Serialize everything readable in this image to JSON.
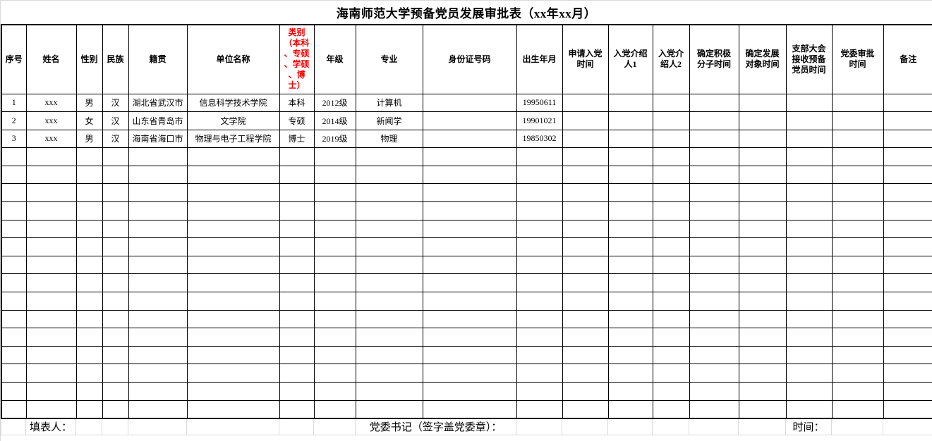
{
  "title": "海南师范大学预备党员发展审批表（xx年xx月）",
  "colors": {
    "category_header_text": "#ff0000",
    "grid_line": "#000000",
    "outer_border": "#000000",
    "footer_grid_line": "#d9d9d9"
  },
  "table": {
    "columns": [
      {
        "key": "xuhao",
        "label": "序号",
        "width": 35
      },
      {
        "key": "xingming",
        "label": "姓名",
        "width": 71
      },
      {
        "key": "xingbie",
        "label": "性别",
        "width": 37
      },
      {
        "key": "minzu",
        "label": "民族",
        "width": 37
      },
      {
        "key": "jiguan",
        "label": "籍贯",
        "width": 83
      },
      {
        "key": "danwei",
        "label": "单位名称",
        "width": 131
      },
      {
        "key": "leibie",
        "label": "类别\n（本科\n、专硕\n、学硕\n、博\n士）",
        "width": 49,
        "color": "#ff0000"
      },
      {
        "key": "nianji",
        "label": "年级",
        "width": 59
      },
      {
        "key": "zhuanye",
        "label": "专业",
        "width": 95
      },
      {
        "key": "shenfenzheng",
        "label": "身份证号码",
        "width": 133
      },
      {
        "key": "chusheng",
        "label": "出生年月",
        "width": 65
      },
      {
        "key": "shenqing",
        "label": "申请入党\n时间",
        "width": 65
      },
      {
        "key": "jieshaoren1",
        "label": "入党介绍\n人1",
        "width": 63
      },
      {
        "key": "jieshaoren2",
        "label": "入党介\n绍人2",
        "width": 52
      },
      {
        "key": "jijifenzi",
        "label": "确定积极\n分子时间",
        "width": 70
      },
      {
        "key": "fazhanduixiang",
        "label": "确定发展\n对象时间",
        "width": 67
      },
      {
        "key": "zhibudahui",
        "label": "支部大会\n接收预备\n党员时间",
        "width": 65
      },
      {
        "key": "dangweishenpi",
        "label": "党委审批\n时间",
        "width": 73
      },
      {
        "key": "beizhu",
        "label": "备注",
        "width": 71
      }
    ],
    "rows": [
      [
        "1",
        "xxx",
        "男",
        "汉",
        "湖北省武汉市",
        "信息科学技术学院",
        "本科",
        "2012级",
        "计算机",
        "",
        "19950611",
        "",
        "",
        "",
        "",
        "",
        "",
        "",
        ""
      ],
      [
        "2",
        "xxx",
        "女",
        "汉",
        "山东省青岛市",
        "文学院",
        "专硕",
        "2014级",
        "新闻学",
        "",
        "19901021",
        "",
        "",
        "",
        "",
        "",
        "",
        "",
        ""
      ],
      [
        "3",
        "xxx",
        "男",
        "汉",
        "海南省海口市",
        "物理与电子工程学院",
        "博士",
        "2019级",
        "物理",
        "",
        "19850302",
        "",
        "",
        "",
        "",
        "",
        "",
        "",
        ""
      ]
    ],
    "empty_row_count": 15
  },
  "footer": {
    "filler_label": "填表人：",
    "secretary_label": "党委书记（签字盖党委章）：",
    "time_label": "时间："
  }
}
